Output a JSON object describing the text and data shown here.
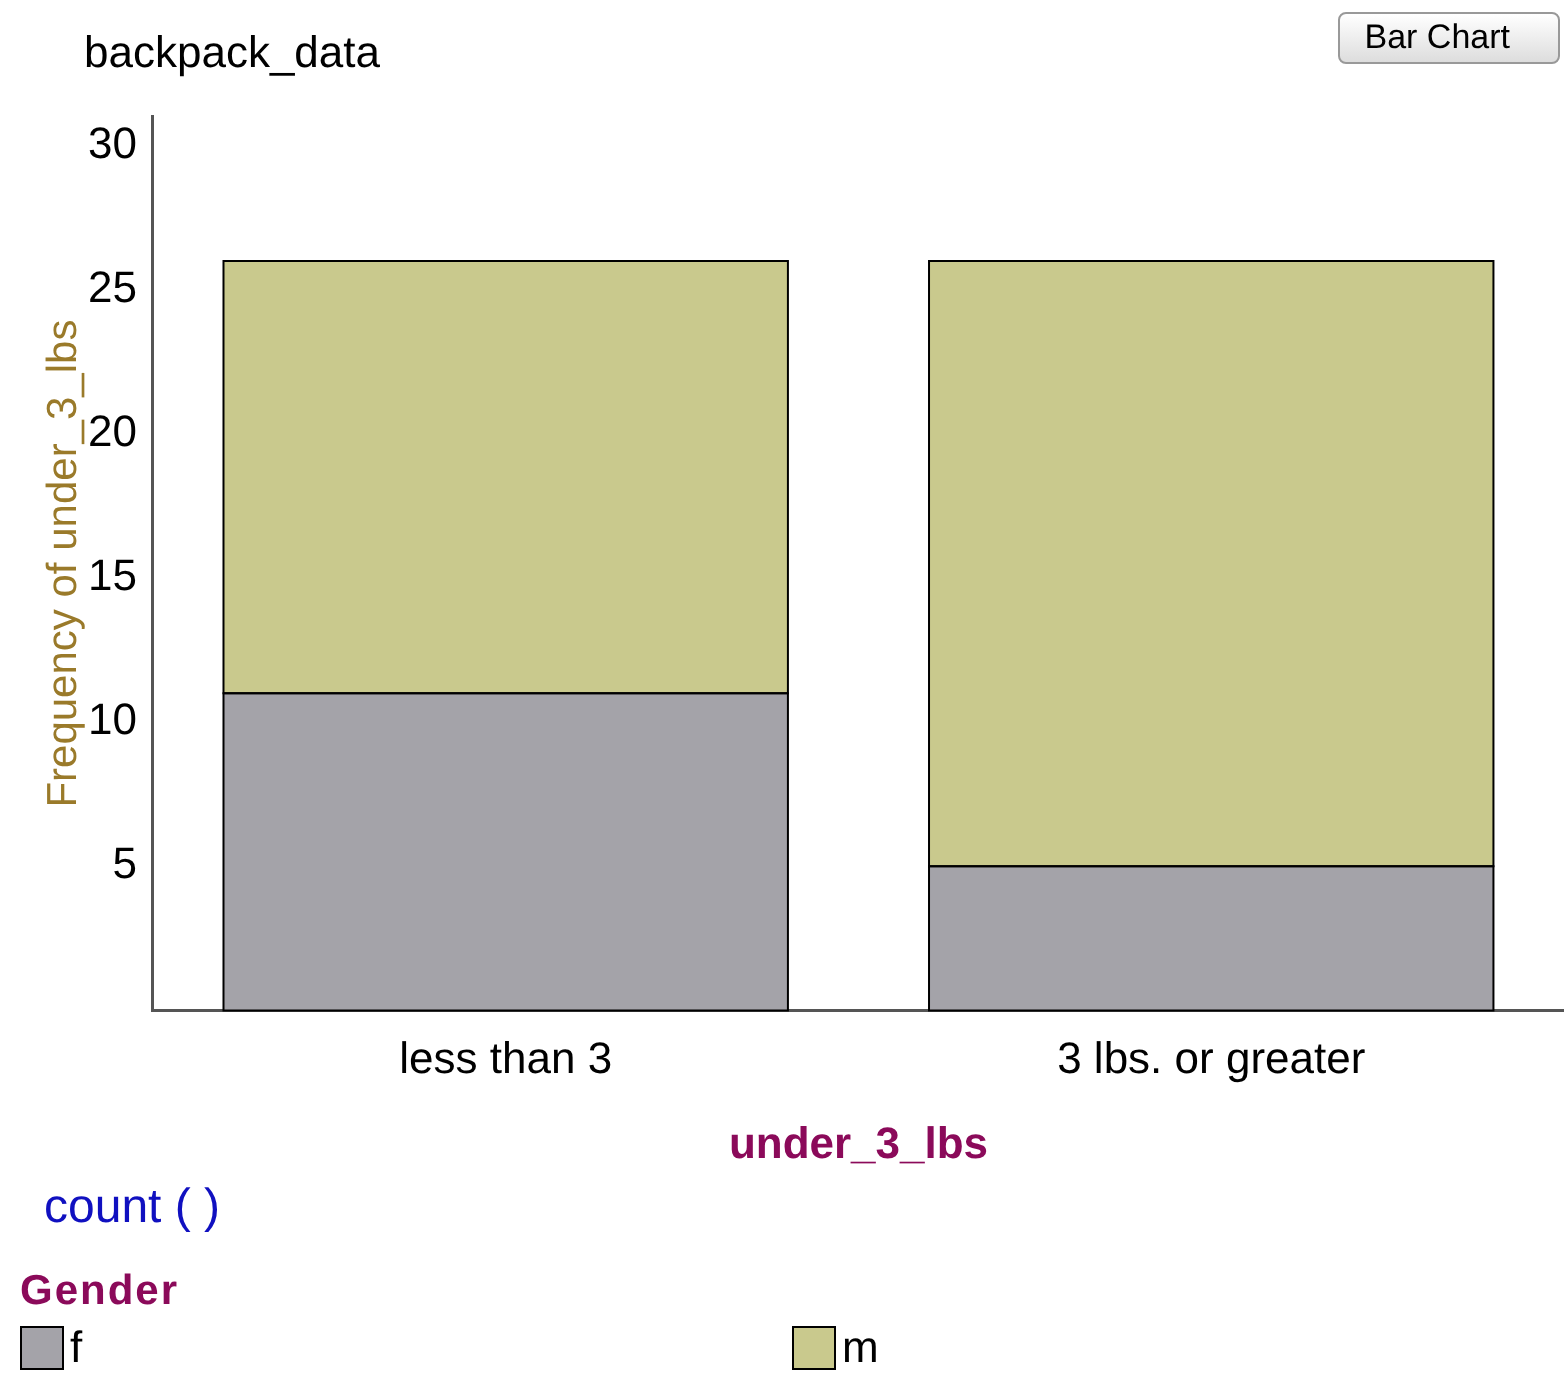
{
  "chart_data": {
    "type": "bar",
    "title": "backpack_data",
    "xlabel": "under_3_lbs",
    "ylabel": "Frequency of under_3_lbs",
    "legend_title": "Gender",
    "annotations": [
      "Bar Chart",
      "count (  )"
    ],
    "categories": [
      "less than 3",
      "3 lbs. or greater"
    ],
    "stacked": true,
    "series": [
      {
        "name": "f",
        "color": "#a4a3a9",
        "values": [
          11,
          5
        ]
      },
      {
        "name": "m",
        "color": "#c9c98d",
        "values": [
          15,
          21
        ]
      }
    ],
    "ylim": [
      0,
      31
    ],
    "yticks": [
      5,
      10,
      15,
      20,
      25,
      30
    ],
    "grid": false,
    "legend": "bottom"
  }
}
